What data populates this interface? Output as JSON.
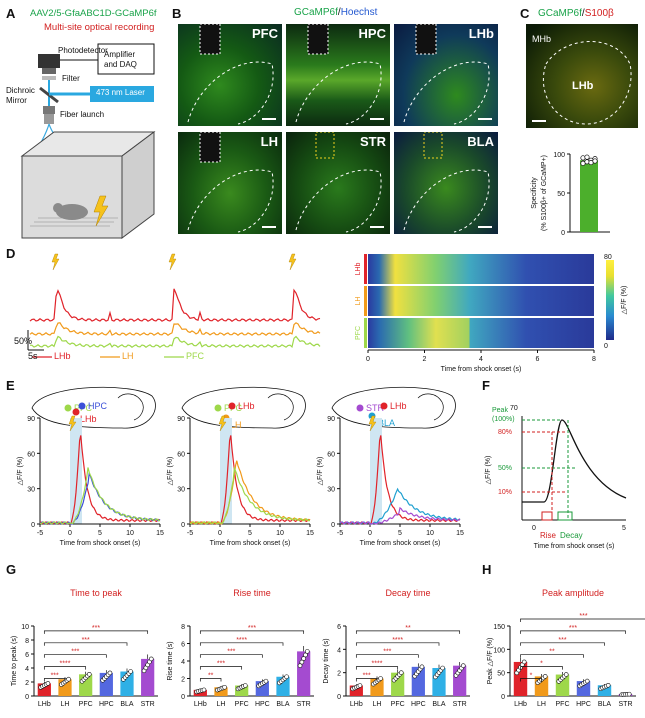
{
  "figure": {
    "panels": {
      "A": "A",
      "B": "B",
      "C": "C",
      "D": "D",
      "E": "E",
      "F": "F",
      "G": "G",
      "H": "H"
    }
  },
  "panelA": {
    "virus": "AAV2/5-GfaABC1D-GCaMP6f",
    "subtitle": "Multi-site optical recording",
    "photodetector": "Photodetector",
    "amplifier": "Amplifier\nand DAQ",
    "filter": "Filter",
    "dichroic": "Dichroic\nMirror",
    "laser": "473 nm Laser",
    "fiber_launch": "Fiber launch",
    "colors": {
      "green": "#1aa34a",
      "red": "#d21f1f",
      "laser": "#2aa8e0"
    }
  },
  "panelB": {
    "title_g": "GCaMP6f",
    "title_sep": "/",
    "title_b": "Hoechst",
    "regions": [
      "PFC",
      "HPC",
      "LHb",
      "LH",
      "STR",
      "BLA"
    ]
  },
  "panelC": {
    "title_g": "GCaMP6f",
    "title_sep": "/",
    "title_r": "S100β",
    "mhb": "MHb",
    "lhb": "LHb",
    "chart_data": {
      "type": "bar",
      "categories": [
        ""
      ],
      "values": [
        92
      ],
      "points": [
        88,
        90,
        92,
        94,
        95,
        96,
        89,
        91
      ],
      "ylim": [
        0,
        100
      ],
      "yticks": [
        0,
        50,
        100
      ],
      "ylabel": "Specificity\n(% S100β+ of GCaMP+)",
      "color": "#4caf2c"
    }
  },
  "panelD": {
    "scale_y": "50%",
    "scale_x": "5s",
    "legend": [
      {
        "name": "LHb",
        "color": "#e0232a"
      },
      {
        "name": "LH",
        "color": "#f19a1b"
      },
      {
        "name": "PFC",
        "color": "#9ed84a"
      }
    ],
    "heatmap": {
      "rows": [
        "LHb",
        "LH",
        "PFC"
      ],
      "row_colors": [
        "#e0232a",
        "#f19a1b",
        "#9ed84a"
      ],
      "colorbar_max": "80",
      "colorbar_min": "0",
      "colorbar_label": "△F/F (%)",
      "xticks": [
        "0",
        "2",
        "4",
        "6",
        "8"
      ],
      "xlabel": "Time from shock onset (s)"
    }
  },
  "panelE": {
    "maps": [
      {
        "labels": [
          {
            "text": "PFC",
            "color": "#9ed84a"
          },
          {
            "text": "HPC",
            "color": "#3c50d8"
          },
          {
            "text": "LHb",
            "color": "#e0232a"
          }
        ]
      },
      {
        "labels": [
          {
            "text": "PFC",
            "color": "#9ed84a"
          },
          {
            "text": "LHb",
            "color": "#e0232a"
          },
          {
            "text": "LH",
            "color": "#f19a1b"
          }
        ]
      },
      {
        "labels": [
          {
            "text": "STR",
            "color": "#a44bd0"
          },
          {
            "text": "LHb",
            "color": "#e0232a"
          },
          {
            "text": "BLA",
            "color": "#20a0d0"
          }
        ]
      }
    ],
    "chart_data": [
      {
        "type": "line",
        "ylabel": "△F/F (%)",
        "xlabel": "Time from shock onset (s)",
        "xlim": [
          -5,
          15
        ],
        "ylim": [
          0,
          90
        ],
        "xticks": [
          -5,
          0,
          5,
          10,
          15
        ],
        "yticks": [
          0,
          30,
          60,
          90
        ],
        "series": [
          {
            "name": "LHb",
            "color": "#e0232a",
            "peak_x": 1.7,
            "peak_y": 80
          },
          {
            "name": "HPC",
            "color": "#3c50d8",
            "peak_x": 3.2,
            "peak_y": 40
          },
          {
            "name": "PFC",
            "color": "#9ed84a",
            "peak_x": 3.0,
            "peak_y": 45
          }
        ]
      },
      {
        "type": "line",
        "ylabel": "△F/F (%)",
        "xlabel": "Time from shock onset (s)",
        "xlim": [
          -5,
          15
        ],
        "ylim": [
          0,
          90
        ],
        "xticks": [
          -5,
          0,
          5,
          10,
          15
        ],
        "yticks": [
          0,
          30,
          60,
          90
        ],
        "series": [
          {
            "name": "LHb",
            "color": "#e0232a",
            "peak_x": 1.7,
            "peak_y": 80
          },
          {
            "name": "LH",
            "color": "#f19a1b",
            "peak_x": 2.7,
            "peak_y": 53
          },
          {
            "name": "PFC",
            "color": "#9ed84a",
            "peak_x": 2.4,
            "peak_y": 45
          }
        ]
      },
      {
        "type": "line",
        "ylabel": "△F/F (%)",
        "xlabel": "Time from shock onset (s)",
        "xlim": [
          -5,
          15
        ],
        "ylim": [
          0,
          90
        ],
        "xticks": [
          -5,
          0,
          5,
          10,
          15
        ],
        "yticks": [
          0,
          30,
          60,
          90
        ],
        "series": [
          {
            "name": "LHb",
            "color": "#e0232a",
            "peak_x": 1.7,
            "peak_y": 80
          },
          {
            "name": "BLA",
            "color": "#20a0d0",
            "peak_x": 4.5,
            "peak_y": 28
          },
          {
            "name": "STR",
            "color": "#a44bd0",
            "peak_x": 5.0,
            "peak_y": 10
          }
        ]
      }
    ]
  },
  "panelF": {
    "peak_value": "70",
    "labels": [
      "Peak\n(100%)",
      "80%",
      "50%",
      "10%"
    ],
    "ylabel": "△F/F (%)",
    "xlabel": "Time from shock onset (s)",
    "xticks": [
      "0",
      "5"
    ],
    "rise": "Rise",
    "decay": "Decay"
  },
  "panelG": {
    "chart_data": [
      {
        "type": "bar",
        "title": "Time to peak",
        "ylabel": "Time to peak (s)",
        "categories": [
          "LHb",
          "LH",
          "PFC",
          "HPC",
          "BLA",
          "STR"
        ],
        "values": [
          1.8,
          2.4,
          3.1,
          3.3,
          3.5,
          5.3
        ],
        "ylim": [
          0,
          10
        ],
        "yticks": [
          0,
          2,
          4,
          6,
          8,
          10
        ],
        "sig": [
          "***",
          "****",
          "***",
          "***",
          "***"
        ]
      },
      {
        "type": "bar",
        "title": "Rise time",
        "ylabel": "Rise time (s)",
        "categories": [
          "LHb",
          "LH",
          "PFC",
          "HPC",
          "BLA",
          "STR"
        ],
        "values": [
          0.7,
          1.0,
          1.2,
          1.7,
          2.2,
          5.1
        ],
        "ylim": [
          0,
          8
        ],
        "yticks": [
          0,
          2,
          4,
          6,
          8
        ],
        "sig": [
          "**",
          "***",
          "***",
          "****",
          "***"
        ]
      },
      {
        "type": "bar",
        "title": "Decay time",
        "ylabel": "Decay time (s)",
        "categories": [
          "LHb",
          "LH",
          "PFC",
          "HPC",
          "BLA",
          "STR"
        ],
        "values": [
          0.9,
          1.5,
          2.0,
          2.5,
          2.4,
          2.6
        ],
        "ylim": [
          0,
          6
        ],
        "yticks": [
          0,
          2,
          4,
          6
        ],
        "sig": [
          "***",
          "****",
          "***",
          "****",
          "**"
        ]
      }
    ],
    "colors": [
      "#e0232a",
      "#f19a1b",
      "#9ed84a",
      "#5468e0",
      "#2fb0e6",
      "#a44bd0"
    ]
  },
  "panelH": {
    "chart_data": {
      "type": "bar",
      "title": "Peak amplitude",
      "ylabel": "Peak △F/F (%)",
      "categories": [
        "LHb",
        "LH",
        "PFC",
        "HPC",
        "BLA",
        "STR"
      ],
      "values": [
        73,
        42,
        46,
        32,
        23,
        4
      ],
      "ylim": [
        0,
        150
      ],
      "yticks": [
        0,
        50,
        100,
        150
      ],
      "sig": [
        "*",
        "*",
        "**",
        "***",
        "***",
        "***"
      ]
    }
  }
}
